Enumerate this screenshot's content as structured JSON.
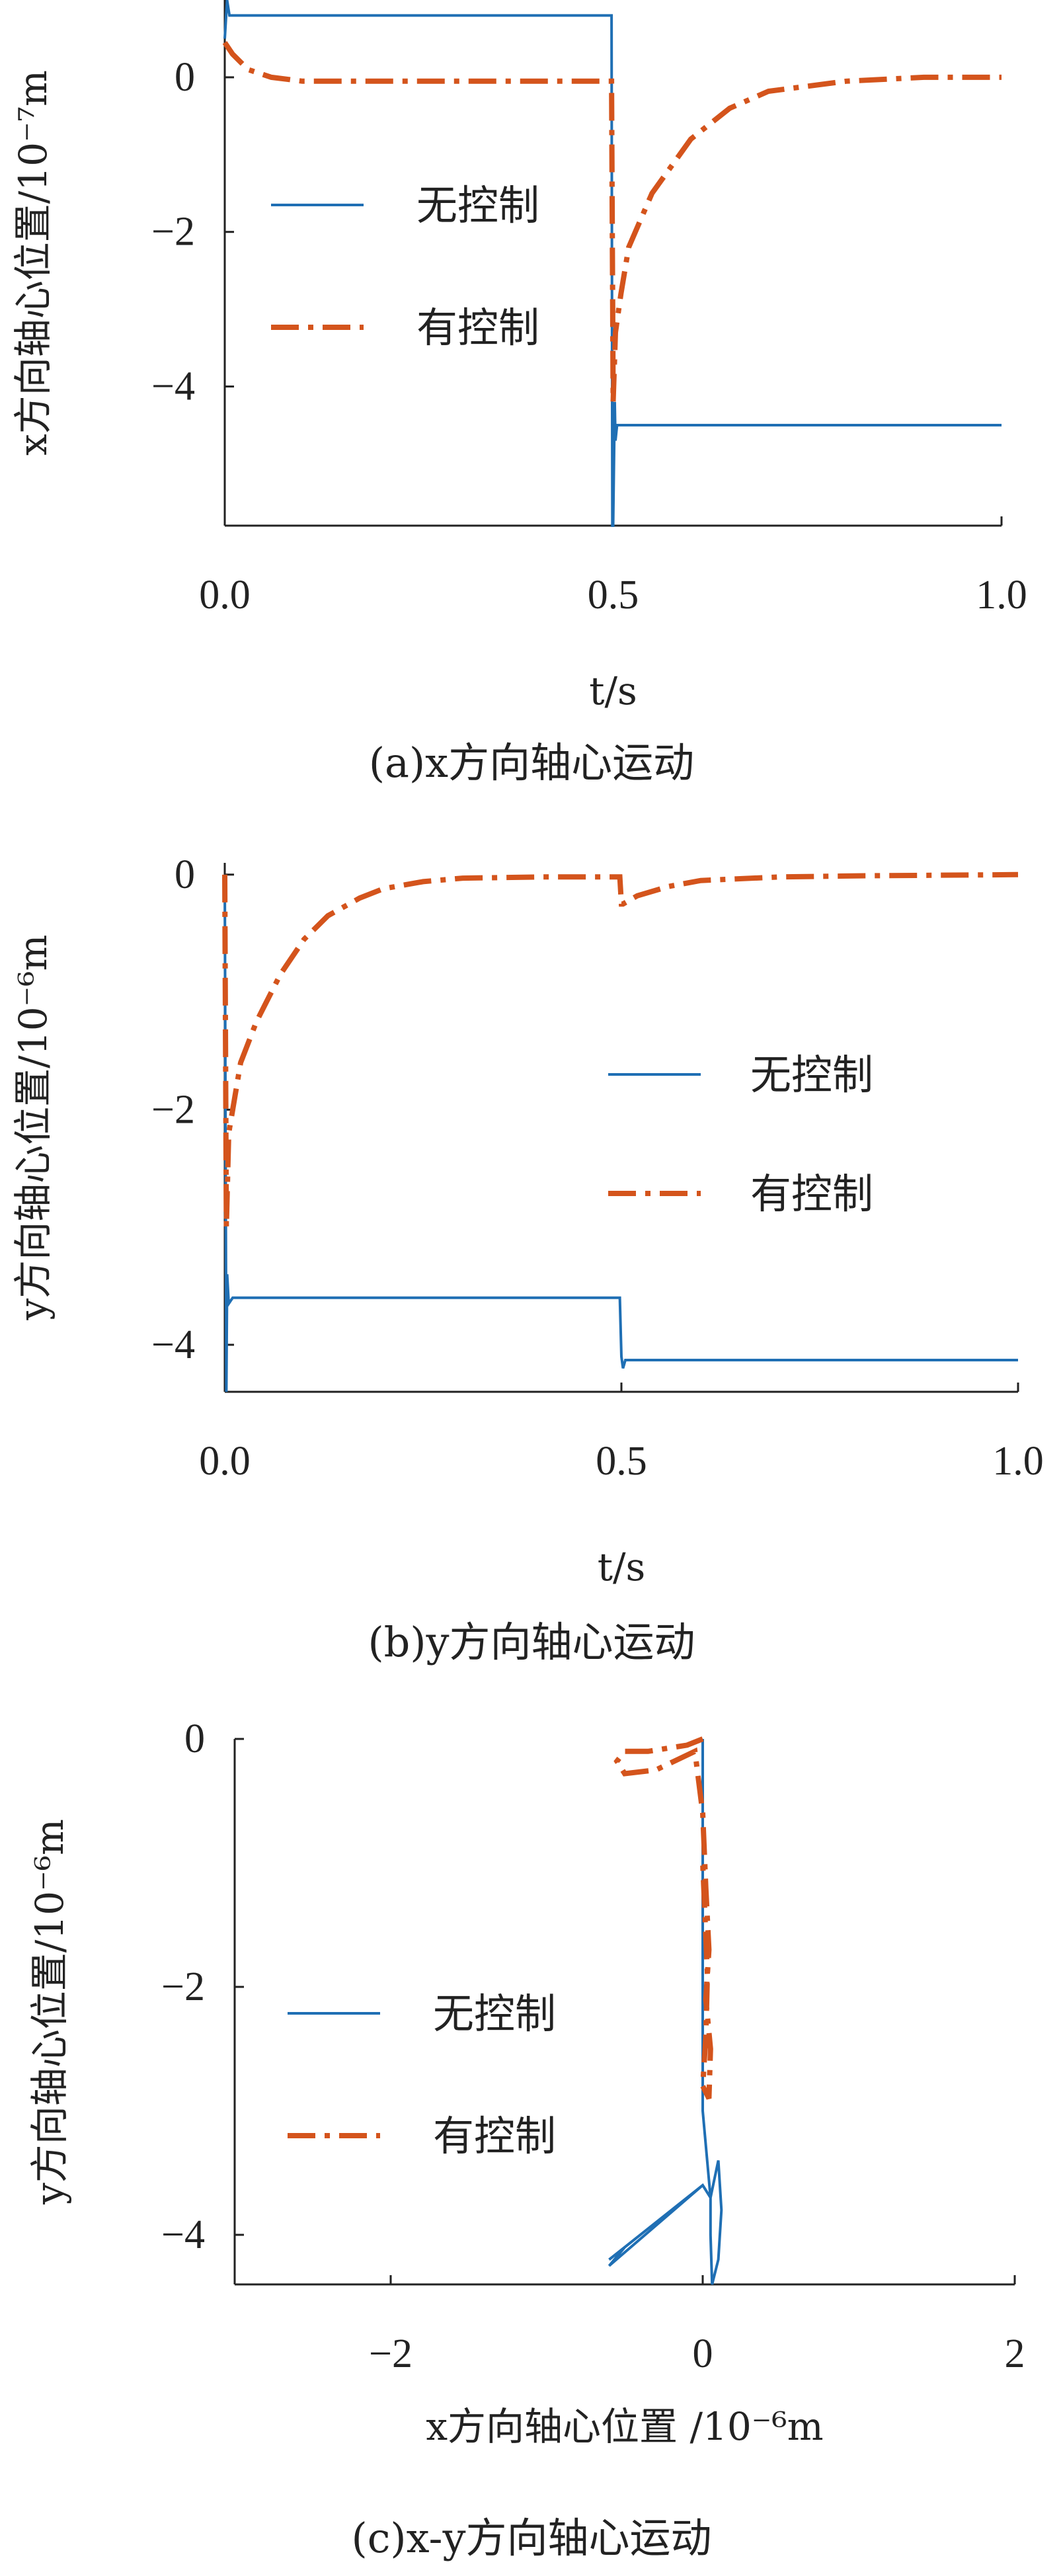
{
  "chart_data": [
    {
      "type": "line",
      "caption": "(a)x方向轴心运动",
      "xlabel": "t/s",
      "ylabel": "x方向轴心位置/10⁻⁷m",
      "xlim": [
        0,
        1.0
      ],
      "ylim": [
        -5.8,
        1.0
      ],
      "xticks": [
        "0.0",
        "0.5",
        "1.0"
      ],
      "yticks": [
        "0",
        "−2",
        "−4"
      ],
      "legend_position": "left-middle",
      "series": [
        {
          "name": "无控制",
          "color": "#1f6fb4",
          "style": "solid",
          "x": [
            0,
            0.003,
            0.006,
            0.1,
            0.3,
            0.498,
            0.499,
            0.5,
            0.502,
            0.503,
            0.505,
            0.6,
            0.8,
            1.0
          ],
          "y": [
            0.5,
            1.0,
            0.8,
            0.8,
            0.8,
            0.8,
            -5.8,
            -5.8,
            -4.2,
            -4.7,
            -4.5,
            -4.5,
            -4.5,
            -4.5
          ]
        },
        {
          "name": "有控制",
          "color": "#d4541c",
          "style": "dashdot",
          "x": [
            0,
            0.01,
            0.03,
            0.06,
            0.1,
            0.15,
            0.25,
            0.35,
            0.45,
            0.498,
            0.5,
            0.503,
            0.51,
            0.52,
            0.55,
            0.6,
            0.65,
            0.7,
            0.8,
            0.9,
            1.0
          ],
          "y": [
            0.45,
            0.3,
            0.1,
            0.0,
            -0.05,
            -0.05,
            -0.05,
            -0.05,
            -0.05,
            -0.05,
            -4.2,
            -3.3,
            -2.8,
            -2.2,
            -1.5,
            -0.8,
            -0.4,
            -0.18,
            -0.05,
            0.0,
            0.0
          ]
        }
      ]
    },
    {
      "type": "line",
      "caption": "(b)y方向轴心运动",
      "xlabel": "t/s",
      "ylabel": "y方向轴心位置/10⁻⁶m",
      "xlim": [
        0,
        1.0
      ],
      "ylim": [
        -4.4,
        0.1
      ],
      "xticks": [
        "0.0",
        "0.5",
        "1.0"
      ],
      "yticks": [
        "0",
        "−2",
        "−4"
      ],
      "legend_position": "right-middle",
      "series": [
        {
          "name": "无控制",
          "color": "#1f6fb4",
          "style": "solid",
          "x": [
            0,
            0.002,
            0.003,
            0.005,
            0.01,
            0.2,
            0.4,
            0.498,
            0.5,
            0.502,
            0.505,
            0.6,
            0.8,
            1.0
          ],
          "y": [
            0.0,
            -4.4,
            -3.4,
            -3.65,
            -3.6,
            -3.6,
            -3.6,
            -3.6,
            -4.1,
            -4.2,
            -4.13,
            -4.13,
            -4.13,
            -4.13
          ]
        },
        {
          "name": "有控制",
          "color": "#d4541c",
          "style": "dashdot",
          "x": [
            0,
            0.002,
            0.005,
            0.01,
            0.02,
            0.04,
            0.07,
            0.1,
            0.13,
            0.17,
            0.2,
            0.25,
            0.3,
            0.4,
            0.498,
            0.5,
            0.502,
            0.52,
            0.56,
            0.6,
            0.7,
            0.8,
            1.0
          ],
          "y": [
            0.0,
            -3.0,
            -2.2,
            -2.0,
            -1.6,
            -1.25,
            -0.85,
            -0.55,
            -0.35,
            -0.2,
            -0.12,
            -0.06,
            -0.03,
            -0.02,
            -0.02,
            -0.25,
            -0.25,
            -0.18,
            -0.1,
            -0.05,
            -0.02,
            -0.01,
            0.0
          ]
        }
      ]
    },
    {
      "type": "line",
      "caption": "(c)x-y方向轴心运动",
      "xlabel": "x方向轴心位置 /10⁻⁶m",
      "ylabel": "y方向轴心位置/10⁻⁶m",
      "xlim": [
        -3,
        2
      ],
      "ylim": [
        -4.4,
        0
      ],
      "xticks": [
        "−2",
        "0",
        "2"
      ],
      "yticks": [
        "0",
        "−2",
        "−4"
      ],
      "legend_position": "left-middle",
      "series": [
        {
          "name": "无控制",
          "color": "#1f6fb4",
          "style": "solid",
          "x": [
            0.0,
            0.0,
            0.0,
            0.05,
            0.1,
            0.12,
            0.1,
            0.06,
            0.05,
            0.05,
            0.0,
            -0.6,
            -0.5,
            -0.6,
            0.0
          ],
          "y": [
            0.0,
            -1.0,
            -3.0,
            -3.7,
            -3.4,
            -3.8,
            -4.2,
            -4.4,
            -4.0,
            -3.7,
            -3.6,
            -4.2,
            -4.1,
            -4.25,
            -3.6
          ]
        },
        {
          "name": "有控制",
          "color": "#d4541c",
          "style": "dashdot",
          "x": [
            0.0,
            -0.1,
            -0.35,
            -0.5,
            -0.55,
            -0.5,
            -0.3,
            -0.05,
            0.0,
            0.02,
            0.04,
            0.02,
            0.05,
            0.04,
            0.0,
            0.02,
            0.03,
            0.0
          ],
          "y": [
            0.0,
            -0.05,
            -0.1,
            -0.1,
            -0.18,
            -0.28,
            -0.25,
            -0.1,
            -0.6,
            -1.2,
            -1.7,
            -2.1,
            -2.5,
            -2.9,
            -2.8,
            -2.4,
            -1.9,
            -1.0
          ]
        }
      ]
    }
  ]
}
